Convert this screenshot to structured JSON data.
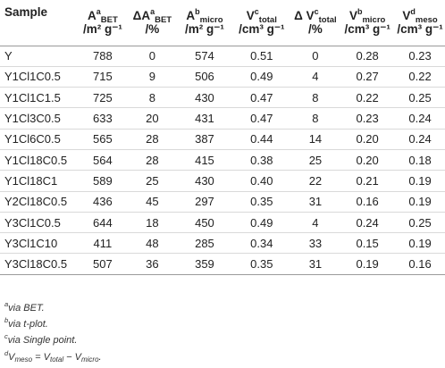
{
  "header": {
    "sample": "Sample",
    "abet": {
      "main": "A",
      "sup": "a",
      "sub": "BET",
      "unit": "/m² g⁻¹"
    },
    "dabet": {
      "main": "ΔA",
      "sup": "a",
      "sub": "BET",
      "unit": "/%"
    },
    "amicro": {
      "main": "A",
      "sup": "b",
      "sub": "micro",
      "unit": "/m² g⁻¹"
    },
    "vtotal": {
      "main": "V",
      "sup": "c",
      "sub": "total",
      "unit": "/cm³ g⁻¹"
    },
    "dvtotal": {
      "main": "Δ V",
      "sup": "c",
      "sub": "total",
      "unit": "/%"
    },
    "vmicro": {
      "main": "V",
      "sup": "b",
      "sub": "micro",
      "unit": "/cm³ g⁻¹"
    },
    "vmeso": {
      "main": "V",
      "sup": "d",
      "sub": "meso",
      "unit": "/cm³ g⁻¹"
    }
  },
  "rows": [
    [
      "Y",
      "788",
      "0",
      "574",
      "0.51",
      "0",
      "0.28",
      "0.23"
    ],
    [
      "Y1Cl1C0.5",
      "715",
      "9",
      "506",
      "0.49",
      "4",
      "0.27",
      "0.22"
    ],
    [
      "Y1Cl1C1.5",
      "725",
      "8",
      "430",
      "0.47",
      "8",
      "0.22",
      "0.25"
    ],
    [
      "Y1Cl3C0.5",
      "633",
      "20",
      "431",
      "0.47",
      "8",
      "0.23",
      "0.24"
    ],
    [
      "Y1Cl6C0.5",
      "565",
      "28",
      "387",
      "0.44",
      "14",
      "0.20",
      "0.24"
    ],
    [
      "Y1Cl18C0.5",
      "564",
      "28",
      "415",
      "0.38",
      "25",
      "0.20",
      "0.18"
    ],
    [
      "Y1Cl18C1",
      "589",
      "25",
      "430",
      "0.40",
      "22",
      "0.21",
      "0.19"
    ],
    [
      "Y2Cl18C0.5",
      "436",
      "45",
      "297",
      "0.35",
      "31",
      "0.16",
      "0.19"
    ],
    [
      "Y3Cl1C0.5",
      "644",
      "18",
      "450",
      "0.49",
      "4",
      "0.24",
      "0.25"
    ],
    [
      "Y3Cl1C10",
      "411",
      "48",
      "285",
      "0.34",
      "33",
      "0.15",
      "0.19"
    ],
    [
      "Y3Cl18C0.5",
      "507",
      "36",
      "359",
      "0.35",
      "31",
      "0.19",
      "0.16"
    ]
  ],
  "footnotes": {
    "a": {
      "mark": "a",
      "text": "via BET."
    },
    "b": {
      "mark": "b",
      "text": "via t-plot."
    },
    "c": {
      "mark": "c",
      "text": "via Single point."
    },
    "d": {
      "mark": "d",
      "lhs": "V",
      "lhs_sub": "meso",
      "eq": " = ",
      "t1": "V",
      "t1_sub": "total",
      "minus": " − ",
      "t2": "V",
      "t2_sub": "micro",
      "end": "."
    }
  }
}
